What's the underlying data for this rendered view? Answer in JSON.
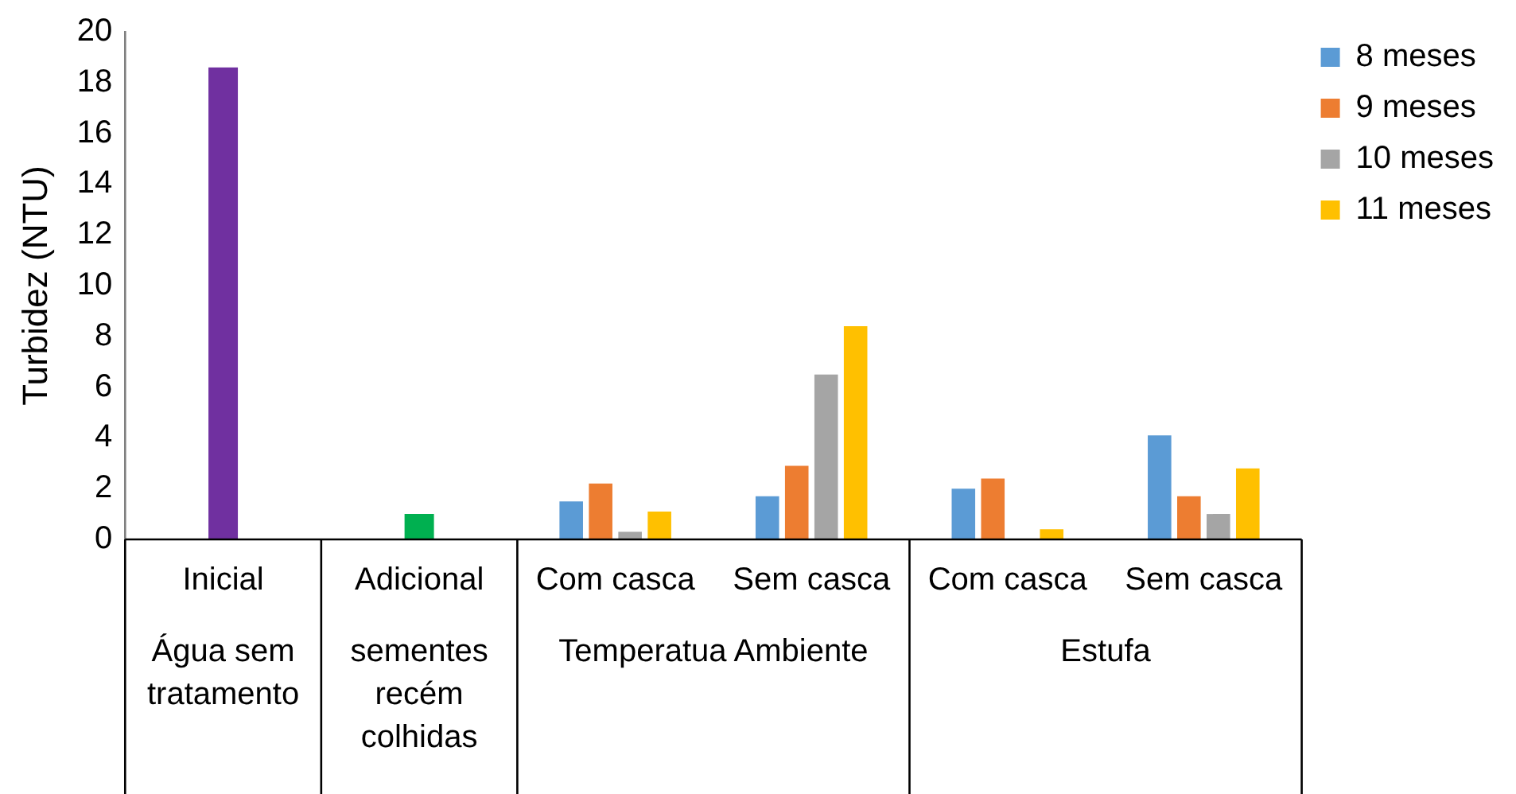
{
  "chart_data": {
    "type": "bar",
    "ylabel": "Turbidez (NTU)",
    "categories": [
      "Inicial",
      "Adicional",
      "Com casca",
      "Sem casca",
      "Com casca",
      "Sem casca"
    ],
    "series": [
      {
        "colors": [
          "#7030a0",
          "#00b050",
          "#7030a0",
          "#7030a0",
          "#7030a0",
          "#7030a0"
        ],
        "values": [
          18.6,
          1.0,
          null,
          null,
          null,
          null
        ]
      },
      {
        "name": "8 meses",
        "color": "#5b9bd5",
        "values": [
          null,
          null,
          1.5,
          1.7,
          2.0,
          4.1
        ]
      },
      {
        "name": "9 meses",
        "color": "#ed7d31",
        "values": [
          null,
          null,
          2.2,
          2.9,
          2.4,
          1.7
        ]
      },
      {
        "name": "10 meses",
        "color": "#a5a5a5",
        "values": [
          null,
          null,
          0.3,
          6.5,
          null,
          1.0
        ]
      },
      {
        "name": "11 meses",
        "color": "#ffc000",
        "values": [
          null,
          null,
          1.1,
          8.4,
          0.4,
          2.8
        ]
      }
    ],
    "ylim": [
      0,
      20
    ],
    "yticks": [
      0,
      2,
      4,
      6,
      8,
      10,
      12,
      14,
      16,
      18,
      20
    ],
    "grid": false,
    "legend": "right",
    "annotations": [
      "Água sem tratamento",
      "sementes recém colhidas",
      "Temperatua Ambiente",
      "Estufa"
    ]
  }
}
